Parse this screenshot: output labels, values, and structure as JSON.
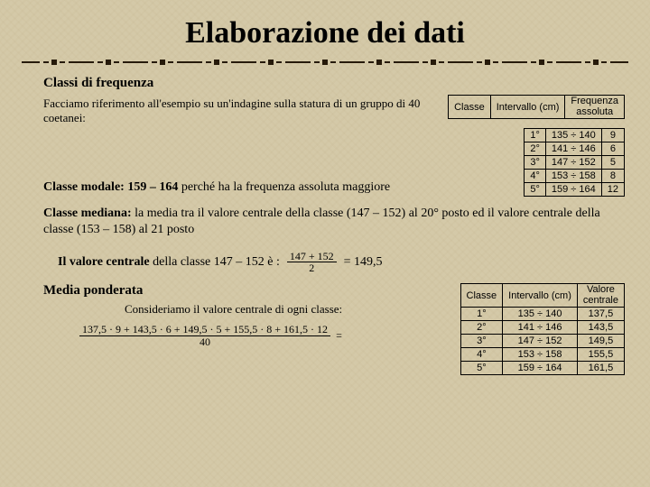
{
  "title": "Elaborazione dei dati",
  "section1": {
    "heading": "Classi di frequenza",
    "intro": "Facciamo riferimento all'esempio su un'indagine sulla statura di un gruppo di 40 coetanei:"
  },
  "table1": {
    "columns": [
      "Classe",
      "Intervallo (cm)",
      "Frequenza assoluta"
    ],
    "rows": [
      [
        "1°",
        "135 ÷ 140",
        "9"
      ],
      [
        "2°",
        "141 ÷ 146",
        "6"
      ],
      [
        "3°",
        "147 ÷ 152",
        "5"
      ],
      [
        "4°",
        "153 ÷ 158",
        "8"
      ],
      [
        "5°",
        "159 ÷ 164",
        "12"
      ]
    ],
    "border_color": "#000000",
    "font_family": "Arial",
    "font_size_pt": 8
  },
  "modale": {
    "label": "Classe modale: 159 – 164",
    "reason": "  perché ha la frequenza assoluta maggiore"
  },
  "mediana": {
    "label": "Classe mediana:",
    "text": " la media tra il valore centrale della classe (147 – 152) al 20° posto ed il valore centrale della classe (153 – 158) al 21 posto"
  },
  "valore_centrale": {
    "lead": "Il valore centrale",
    "rest": " della classe 147 – 152 è :",
    "frac_num": "147 + 152",
    "frac_den": "2",
    "result": "= 149,5"
  },
  "media_ponderata": {
    "heading": "Media ponderata",
    "text": "Consideriamo il valore centrale di ogni classe:",
    "frac_num": "137,5 · 9 + 143,5 · 6 + 149,5 · 5 + 155,5 · 8 + 161,5 · 12",
    "frac_den": "40",
    "result": "="
  },
  "table2": {
    "columns": [
      "Classe",
      "Intervallo (cm)",
      "Valore centrale"
    ],
    "rows": [
      [
        "1°",
        "135 ÷ 140",
        "137,5"
      ],
      [
        "2°",
        "141 ÷ 146",
        "143,5"
      ],
      [
        "3°",
        "147 ÷ 152",
        "149,5"
      ],
      [
        "4°",
        "153 ÷ 158",
        "155,5"
      ],
      [
        "5°",
        "159 ÷ 164",
        "161,5"
      ]
    ]
  },
  "colors": {
    "background": "#d4c9a8",
    "text": "#000000",
    "rule": "#261a0a"
  }
}
